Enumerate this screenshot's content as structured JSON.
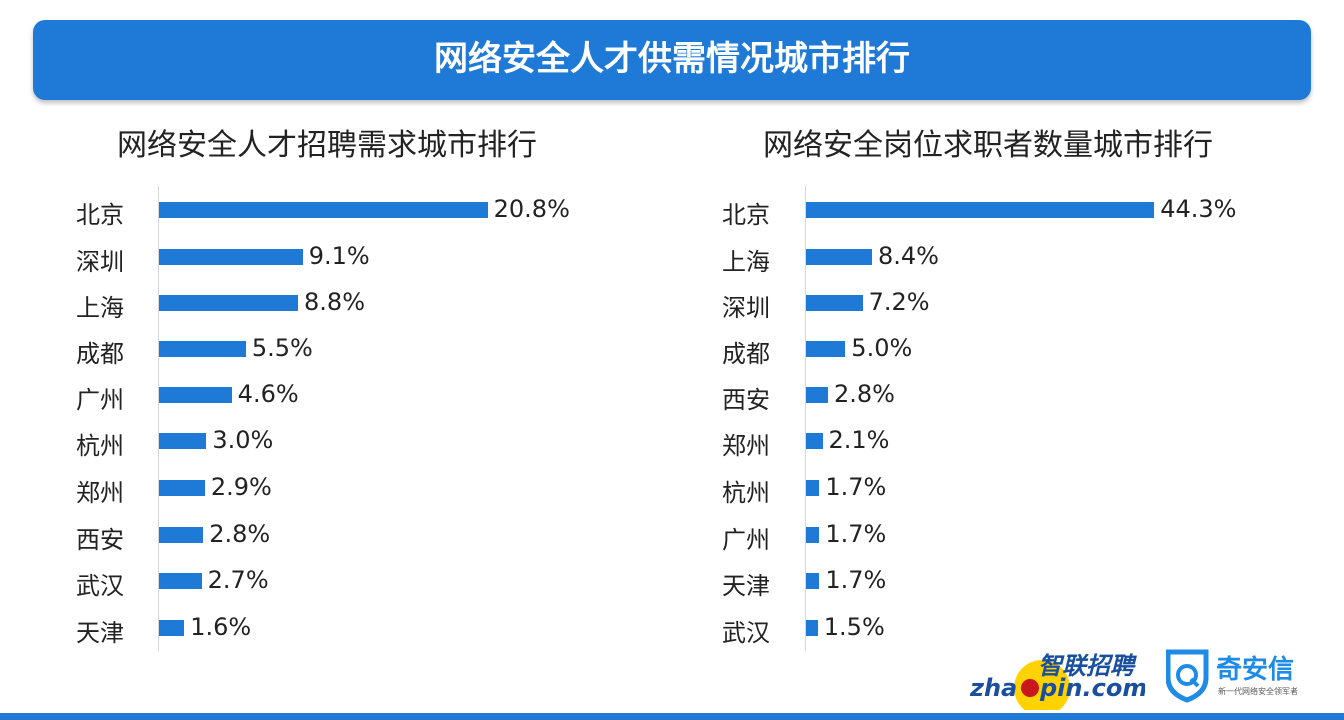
{
  "banner_title": "网络安全人才供需情况城市排行",
  "logos": {
    "zhaopin": "智联招聘 zhaopin.com",
    "qianxin": "奇安信",
    "qianxin_slogan": "新一代网络安全领军者"
  },
  "colors": {
    "bar": "#1e7ad6",
    "banner": "#1e7ad6"
  },
  "chart_data": [
    {
      "type": "bar",
      "orientation": "horizontal",
      "title": "网络安全人才招聘需求城市排行",
      "categories": [
        "北京",
        "深圳",
        "上海",
        "成都",
        "广州",
        "杭州",
        "郑州",
        "西安",
        "武汉",
        "天津"
      ],
      "values": [
        20.8,
        9.1,
        8.8,
        5.5,
        4.6,
        3.0,
        2.9,
        2.8,
        2.7,
        1.6
      ],
      "labels": [
        "20.8%",
        "9.1%",
        "8.8%",
        "5.5%",
        "4.6%",
        "3.0%",
        "2.9%",
        "2.8%",
        "2.7%",
        "1.6%"
      ],
      "unit": "%"
    },
    {
      "type": "bar",
      "orientation": "horizontal",
      "title": "网络安全岗位求职者数量城市排行",
      "categories": [
        "北京",
        "上海",
        "深圳",
        "成都",
        "西安",
        "郑州",
        "杭州",
        "广州",
        "天津",
        "武汉"
      ],
      "values": [
        44.3,
        8.4,
        7.2,
        5.0,
        2.8,
        2.1,
        1.7,
        1.7,
        1.7,
        1.5
      ],
      "labels": [
        "44.3%",
        "8.4%",
        "7.2%",
        "5.0%",
        "2.8%",
        "2.1%",
        "1.7%",
        "1.7%",
        "1.7%",
        "1.5%"
      ],
      "unit": "%"
    }
  ]
}
